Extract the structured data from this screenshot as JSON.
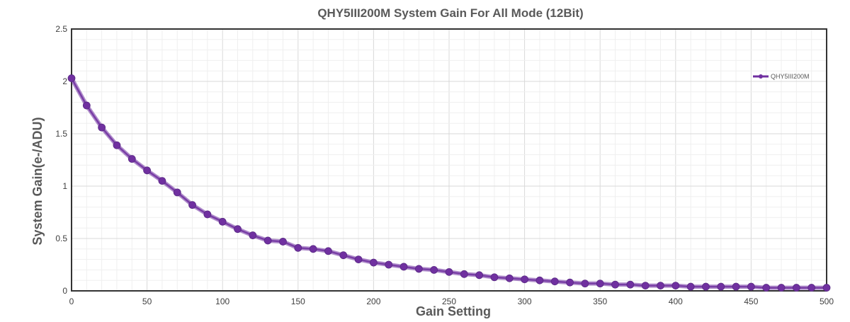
{
  "chart_data": {
    "type": "line",
    "title": "QHY5III200M System Gain For All Mode (12Bit)",
    "xlabel": "Gain Setting",
    "ylabel": "System Gain(e-/ADU)",
    "xlim": [
      0,
      500
    ],
    "ylim": [
      0,
      2.5
    ],
    "xticks": [
      0,
      50,
      100,
      150,
      200,
      250,
      300,
      350,
      400,
      450,
      500
    ],
    "yticks": [
      0,
      0.5,
      1,
      1.5,
      2,
      2.5
    ],
    "grid": true,
    "legend_position": "top-right",
    "series": [
      {
        "name": "QHY5III200M",
        "color": "#7030a0",
        "x": [
          0,
          10,
          20,
          30,
          40,
          50,
          60,
          70,
          80,
          90,
          100,
          110,
          120,
          130,
          140,
          150,
          160,
          170,
          180,
          190,
          200,
          210,
          220,
          230,
          240,
          250,
          260,
          270,
          280,
          290,
          300,
          310,
          320,
          330,
          340,
          350,
          360,
          370,
          380,
          390,
          400,
          410,
          420,
          430,
          440,
          450,
          460,
          470,
          480,
          490,
          500
        ],
        "y": [
          2.03,
          1.77,
          1.56,
          1.39,
          1.26,
          1.15,
          1.05,
          0.94,
          0.82,
          0.73,
          0.66,
          0.59,
          0.53,
          0.48,
          0.47,
          0.41,
          0.4,
          0.38,
          0.34,
          0.3,
          0.27,
          0.25,
          0.23,
          0.21,
          0.2,
          0.18,
          0.16,
          0.15,
          0.13,
          0.12,
          0.11,
          0.1,
          0.09,
          0.08,
          0.07,
          0.07,
          0.06,
          0.06,
          0.05,
          0.05,
          0.05,
          0.04,
          0.04,
          0.04,
          0.04,
          0.04,
          0.03,
          0.03,
          0.03,
          0.03,
          0.03
        ]
      }
    ]
  }
}
